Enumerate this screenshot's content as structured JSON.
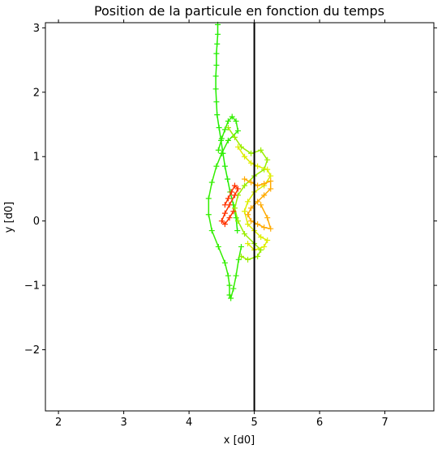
{
  "chart_data": {
    "type": "scatter",
    "title": "Position de la particule en fonction du temps",
    "xlabel": "x [d0]",
    "ylabel": "y [d0]",
    "xlim": [
      1.8,
      7.75
    ],
    "ylim": [
      -2.95,
      3.08
    ],
    "xticks": [
      "2",
      "3",
      "4",
      "5",
      "6",
      "7"
    ],
    "yticks": [
      "−2",
      "−1",
      "0",
      "1",
      "2",
      "3"
    ],
    "xtick_values": [
      2,
      3,
      4,
      5,
      6,
      7
    ],
    "ytick_values": [
      -2,
      -1,
      0,
      1,
      2,
      3
    ],
    "vline_x": 5.0,
    "vline_color": "#000000",
    "marker": "+",
    "grid": false,
    "color_gradient": [
      "#00ee00",
      "#eeee00",
      "#ff2200"
    ],
    "series": [
      {
        "color": "#22ee00",
        "x": [
          4.44,
          4.44,
          4.43,
          4.42,
          4.42,
          4.41,
          4.41,
          4.42,
          4.43,
          4.46,
          4.49,
          4.52,
          4.55,
          4.59,
          4.63,
          4.68,
          4.72,
          4.74
        ],
        "y": [
          3.05,
          2.9,
          2.75,
          2.6,
          2.42,
          2.25,
          2.05,
          1.85,
          1.65,
          1.45,
          1.25,
          1.05,
          0.85,
          0.65,
          0.45,
          0.25,
          0.05,
          -0.15
        ]
      },
      {
        "color": "#33ee00",
        "x": [
          4.45,
          4.5,
          4.55,
          4.6,
          4.66,
          4.72,
          4.75,
          4.6,
          4.5,
          4.42,
          4.35,
          4.3,
          4.3,
          4.35,
          4.45,
          4.55,
          4.6,
          4.62,
          4.62,
          4.64,
          4.68,
          4.72,
          4.76,
          4.8
        ],
        "y": [
          1.1,
          1.28,
          1.42,
          1.55,
          1.62,
          1.55,
          1.4,
          1.25,
          1.05,
          0.85,
          0.6,
          0.35,
          0.1,
          -0.15,
          -0.4,
          -0.65,
          -0.85,
          -1.0,
          -1.15,
          -1.2,
          -1.05,
          -0.85,
          -0.6,
          -0.4
        ]
      },
      {
        "color": "#99ee00",
        "x": [
          4.6,
          4.7,
          4.8,
          4.95,
          5.1,
          5.2,
          5.15,
          5.0,
          4.85,
          4.75,
          4.7,
          4.75,
          4.85,
          5.0,
          5.1,
          5.05,
          4.9,
          4.8
        ],
        "y": [
          1.45,
          1.3,
          1.15,
          1.05,
          1.1,
          0.95,
          0.8,
          0.7,
          0.55,
          0.4,
          0.2,
          0.0,
          -0.2,
          -0.35,
          -0.45,
          -0.55,
          -0.6,
          -0.55
        ]
      },
      {
        "color": "#ddee00",
        "x": [
          4.75,
          4.85,
          4.95,
          5.05,
          5.2,
          5.25,
          5.15,
          5.0,
          4.9,
          4.85,
          4.9,
          5.0,
          5.1,
          5.2,
          5.15,
          5.0,
          4.9
        ],
        "y": [
          1.15,
          1.0,
          0.9,
          0.85,
          0.8,
          0.7,
          0.55,
          0.45,
          0.3,
          0.15,
          -0.05,
          -0.15,
          -0.25,
          -0.3,
          -0.4,
          -0.45,
          -0.35
        ]
      },
      {
        "color": "#ffaa00",
        "x": [
          4.85,
          4.95,
          5.05,
          5.15,
          5.25,
          5.25,
          5.15,
          5.05,
          4.95,
          4.9,
          4.95,
          5.05,
          5.15,
          5.25,
          5.2,
          5.1
        ],
        "y": [
          0.65,
          0.6,
          0.55,
          0.58,
          0.62,
          0.5,
          0.4,
          0.3,
          0.2,
          0.1,
          0.0,
          -0.05,
          -0.1,
          -0.12,
          0.05,
          0.25
        ]
      },
      {
        "color": "#ff3300",
        "x": [
          4.55,
          4.6,
          4.65,
          4.7,
          4.75,
          4.7,
          4.62,
          4.55,
          4.5,
          4.55,
          4.62,
          4.68
        ],
        "y": [
          0.25,
          0.35,
          0.45,
          0.55,
          0.5,
          0.4,
          0.25,
          0.12,
          0.0,
          -0.05,
          0.05,
          0.15
        ]
      }
    ]
  }
}
